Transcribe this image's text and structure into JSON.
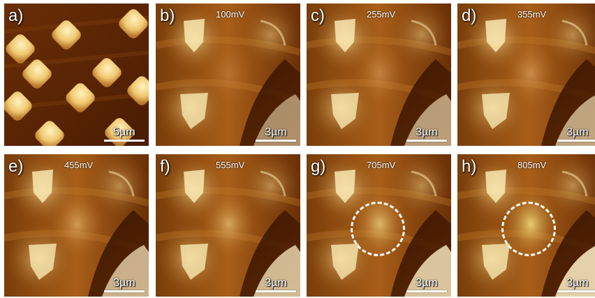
{
  "panels": [
    {
      "label": "a)",
      "voltage": "",
      "scale": "5µm",
      "kind": "topo"
    },
    {
      "label": "b)",
      "voltage": "100mV",
      "scale": "3µm",
      "kind": "map",
      "intensity": 0.1
    },
    {
      "label": "c)",
      "voltage": "255mV",
      "scale": "3µm",
      "kind": "map",
      "intensity": 0.3
    },
    {
      "label": "d)",
      "voltage": "355mV",
      "scale": "3µm",
      "kind": "map",
      "intensity": 0.4
    },
    {
      "label": "e)",
      "voltage": "455mV",
      "scale": "3µm",
      "kind": "map",
      "intensity": 0.55
    },
    {
      "label": "f)",
      "voltage": "555mV",
      "scale": "3µm",
      "kind": "map",
      "intensity": 0.65
    },
    {
      "label": "g)",
      "voltage": "705mV",
      "scale": "3µm",
      "kind": "map",
      "intensity": 0.8,
      "circle": true
    },
    {
      "label": "h)",
      "voltage": "805mV",
      "scale": "3µm",
      "kind": "map",
      "intensity": 0.95,
      "circle": true
    }
  ],
  "colors": {
    "dark": "#3a1400",
    "mid": "#8a4a0c",
    "bright": "#f5e6a8",
    "accent": "#c87a22"
  }
}
